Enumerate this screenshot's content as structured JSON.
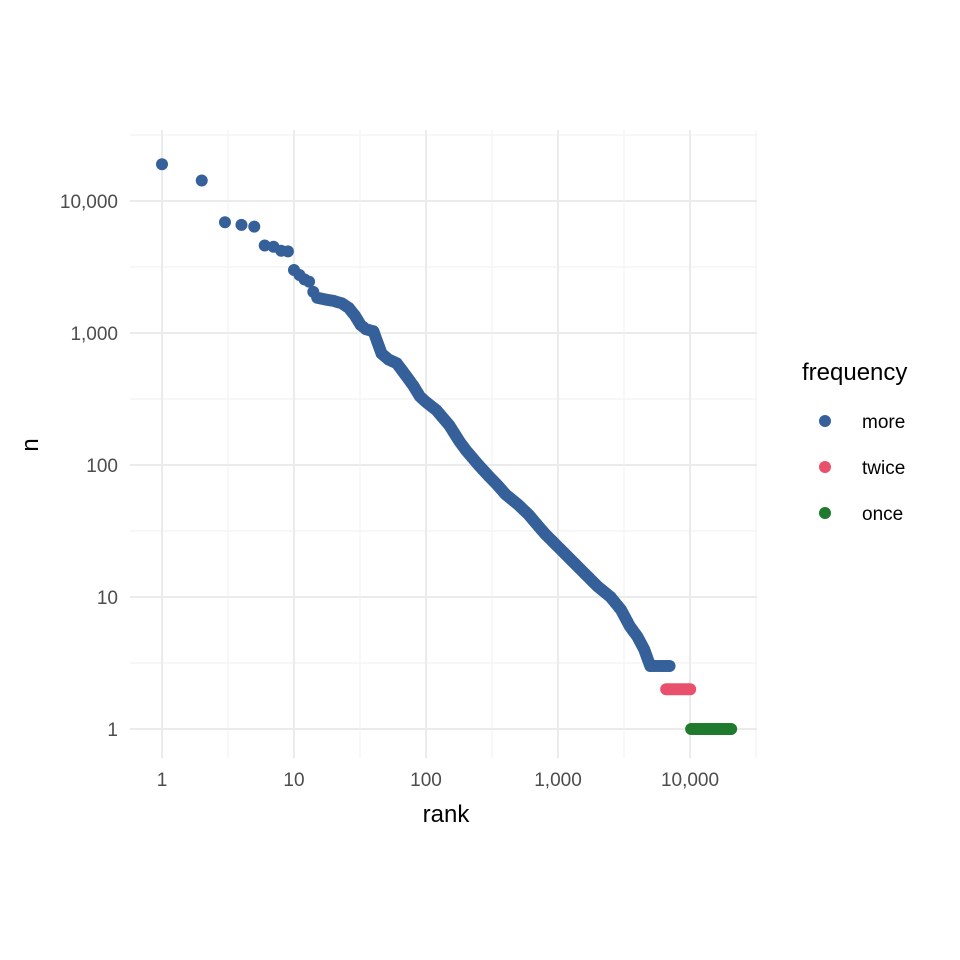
{
  "chart_data": {
    "type": "scatter",
    "xlabel": "rank",
    "ylabel": "n",
    "x_scale": "log10",
    "y_scale": "log10",
    "xlim": [
      0.8,
      30000
    ],
    "ylim": [
      0.6,
      30000
    ],
    "x_ticks": [
      {
        "value": 1,
        "label": "1"
      },
      {
        "value": 10,
        "label": "10"
      },
      {
        "value": 100,
        "label": "100"
      },
      {
        "value": 1000,
        "label": "1,000"
      },
      {
        "value": 10000,
        "label": "10,000"
      }
    ],
    "y_ticks": [
      {
        "value": 1,
        "label": "1"
      },
      {
        "value": 10,
        "label": "10"
      },
      {
        "value": 100,
        "label": "100"
      },
      {
        "value": 1000,
        "label": "1,000"
      },
      {
        "value": 10000,
        "label": "10,000"
      }
    ],
    "grid": true,
    "legend": {
      "title": "frequency",
      "position": "right",
      "entries": [
        {
          "label": "more",
          "color": "#35609A"
        },
        {
          "label": "twice",
          "color": "#E8506B"
        },
        {
          "label": "once",
          "color": "#1F7A2E"
        }
      ]
    },
    "series": [
      {
        "name": "more",
        "color": "#35609A",
        "points": [
          [
            1,
            19000
          ],
          [
            2,
            14300
          ],
          [
            3,
            6900
          ],
          [
            4,
            6600
          ],
          [
            5,
            6400
          ],
          [
            6,
            4600
          ],
          [
            7,
            4500
          ],
          [
            8,
            4200
          ],
          [
            9,
            4150
          ],
          [
            10,
            3000
          ],
          [
            11,
            2750
          ],
          [
            12,
            2550
          ],
          [
            13,
            2450
          ],
          [
            14,
            2050
          ],
          [
            15,
            1850
          ],
          [
            17,
            1800
          ],
          [
            20,
            1750
          ],
          [
            23,
            1680
          ],
          [
            26,
            1550
          ],
          [
            29,
            1350
          ],
          [
            32,
            1150
          ],
          [
            35,
            1070
          ],
          [
            40,
            1030
          ],
          [
            42,
            900
          ],
          [
            46,
            700
          ],
          [
            52,
            630
          ],
          [
            60,
            590
          ],
          [
            70,
            480
          ],
          [
            80,
            400
          ],
          [
            90,
            330
          ],
          [
            100,
            300
          ],
          [
            120,
            260
          ],
          [
            150,
            200
          ],
          [
            180,
            150
          ],
          [
            200,
            130
          ],
          [
            250,
            100
          ],
          [
            300,
            82
          ],
          [
            350,
            70
          ],
          [
            400,
            60
          ],
          [
            500,
            50
          ],
          [
            600,
            42
          ],
          [
            700,
            35
          ],
          [
            800,
            30
          ],
          [
            1000,
            24
          ],
          [
            1200,
            20
          ],
          [
            1500,
            16
          ],
          [
            2000,
            12
          ],
          [
            2500,
            10
          ],
          [
            3000,
            8
          ],
          [
            3500,
            6
          ],
          [
            4000,
            5
          ],
          [
            4500,
            4
          ],
          [
            5000,
            3
          ],
          [
            6000,
            3
          ],
          [
            7000,
            3
          ]
        ]
      },
      {
        "name": "twice",
        "color": "#E8506B",
        "points": [
          [
            6600,
            2
          ],
          [
            10100,
            2
          ]
        ]
      },
      {
        "name": "once",
        "color": "#1F7A2E",
        "points": [
          [
            10200,
            1
          ],
          [
            21000,
            1
          ]
        ]
      }
    ]
  }
}
